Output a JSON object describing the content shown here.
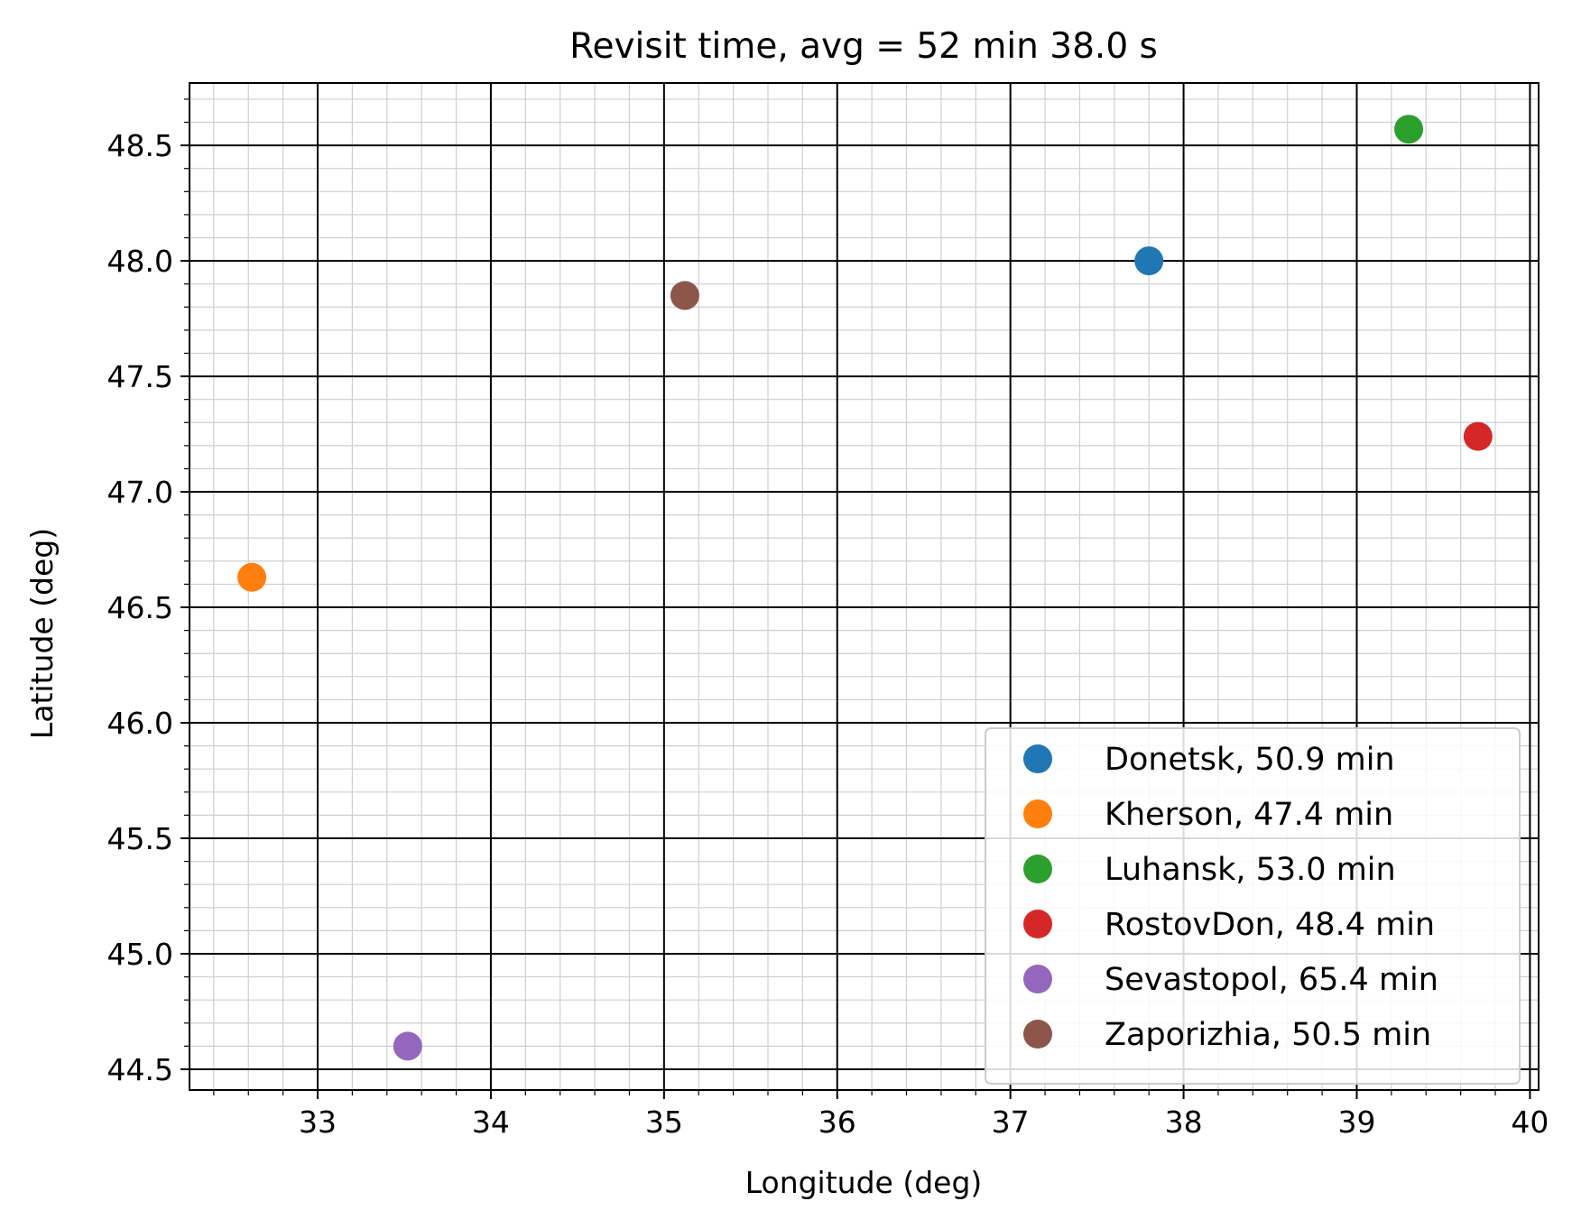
{
  "chart_data": {
    "type": "scatter",
    "title": "Revisit time, avg = 52 min 38.0 s",
    "xlabel": "Longitude (deg)",
    "ylabel": "Latitude (deg)",
    "xlim": [
      32.26,
      40.05
    ],
    "ylim": [
      44.41,
      48.77
    ],
    "x_ticks": [
      33,
      34,
      35,
      36,
      37,
      38,
      39,
      40
    ],
    "x_tick_labels": [
      "33",
      "34",
      "35",
      "36",
      "37",
      "38",
      "39",
      "40"
    ],
    "y_ticks": [
      44.5,
      45.0,
      45.5,
      46.0,
      46.5,
      47.0,
      47.5,
      48.0,
      48.5
    ],
    "y_tick_labels": [
      "44.5",
      "45.0",
      "45.5",
      "46.0",
      "46.5",
      "47.0",
      "47.5",
      "48.0",
      "48.5"
    ],
    "grid": true,
    "minor_grid": true,
    "legend_position": "lower-right",
    "series": [
      {
        "name": "Donetsk, 50.9 min",
        "x": 37.8,
        "y": 48.0,
        "color": "#1f77b4"
      },
      {
        "name": "Kherson, 47.4 min",
        "x": 32.62,
        "y": 46.63,
        "color": "#ff7f0e"
      },
      {
        "name": "Luhansk, 53.0 min",
        "x": 39.3,
        "y": 48.57,
        "color": "#2ca02c"
      },
      {
        "name": "RostovDon, 48.4 min",
        "x": 39.7,
        "y": 47.24,
        "color": "#d62728"
      },
      {
        "name": "Sevastopol, 65.4 min",
        "x": 33.52,
        "y": 44.6,
        "color": "#9467bd"
      },
      {
        "name": "Zaporizhia, 50.5 min",
        "x": 35.12,
        "y": 47.85,
        "color": "#8c564b"
      }
    ]
  }
}
